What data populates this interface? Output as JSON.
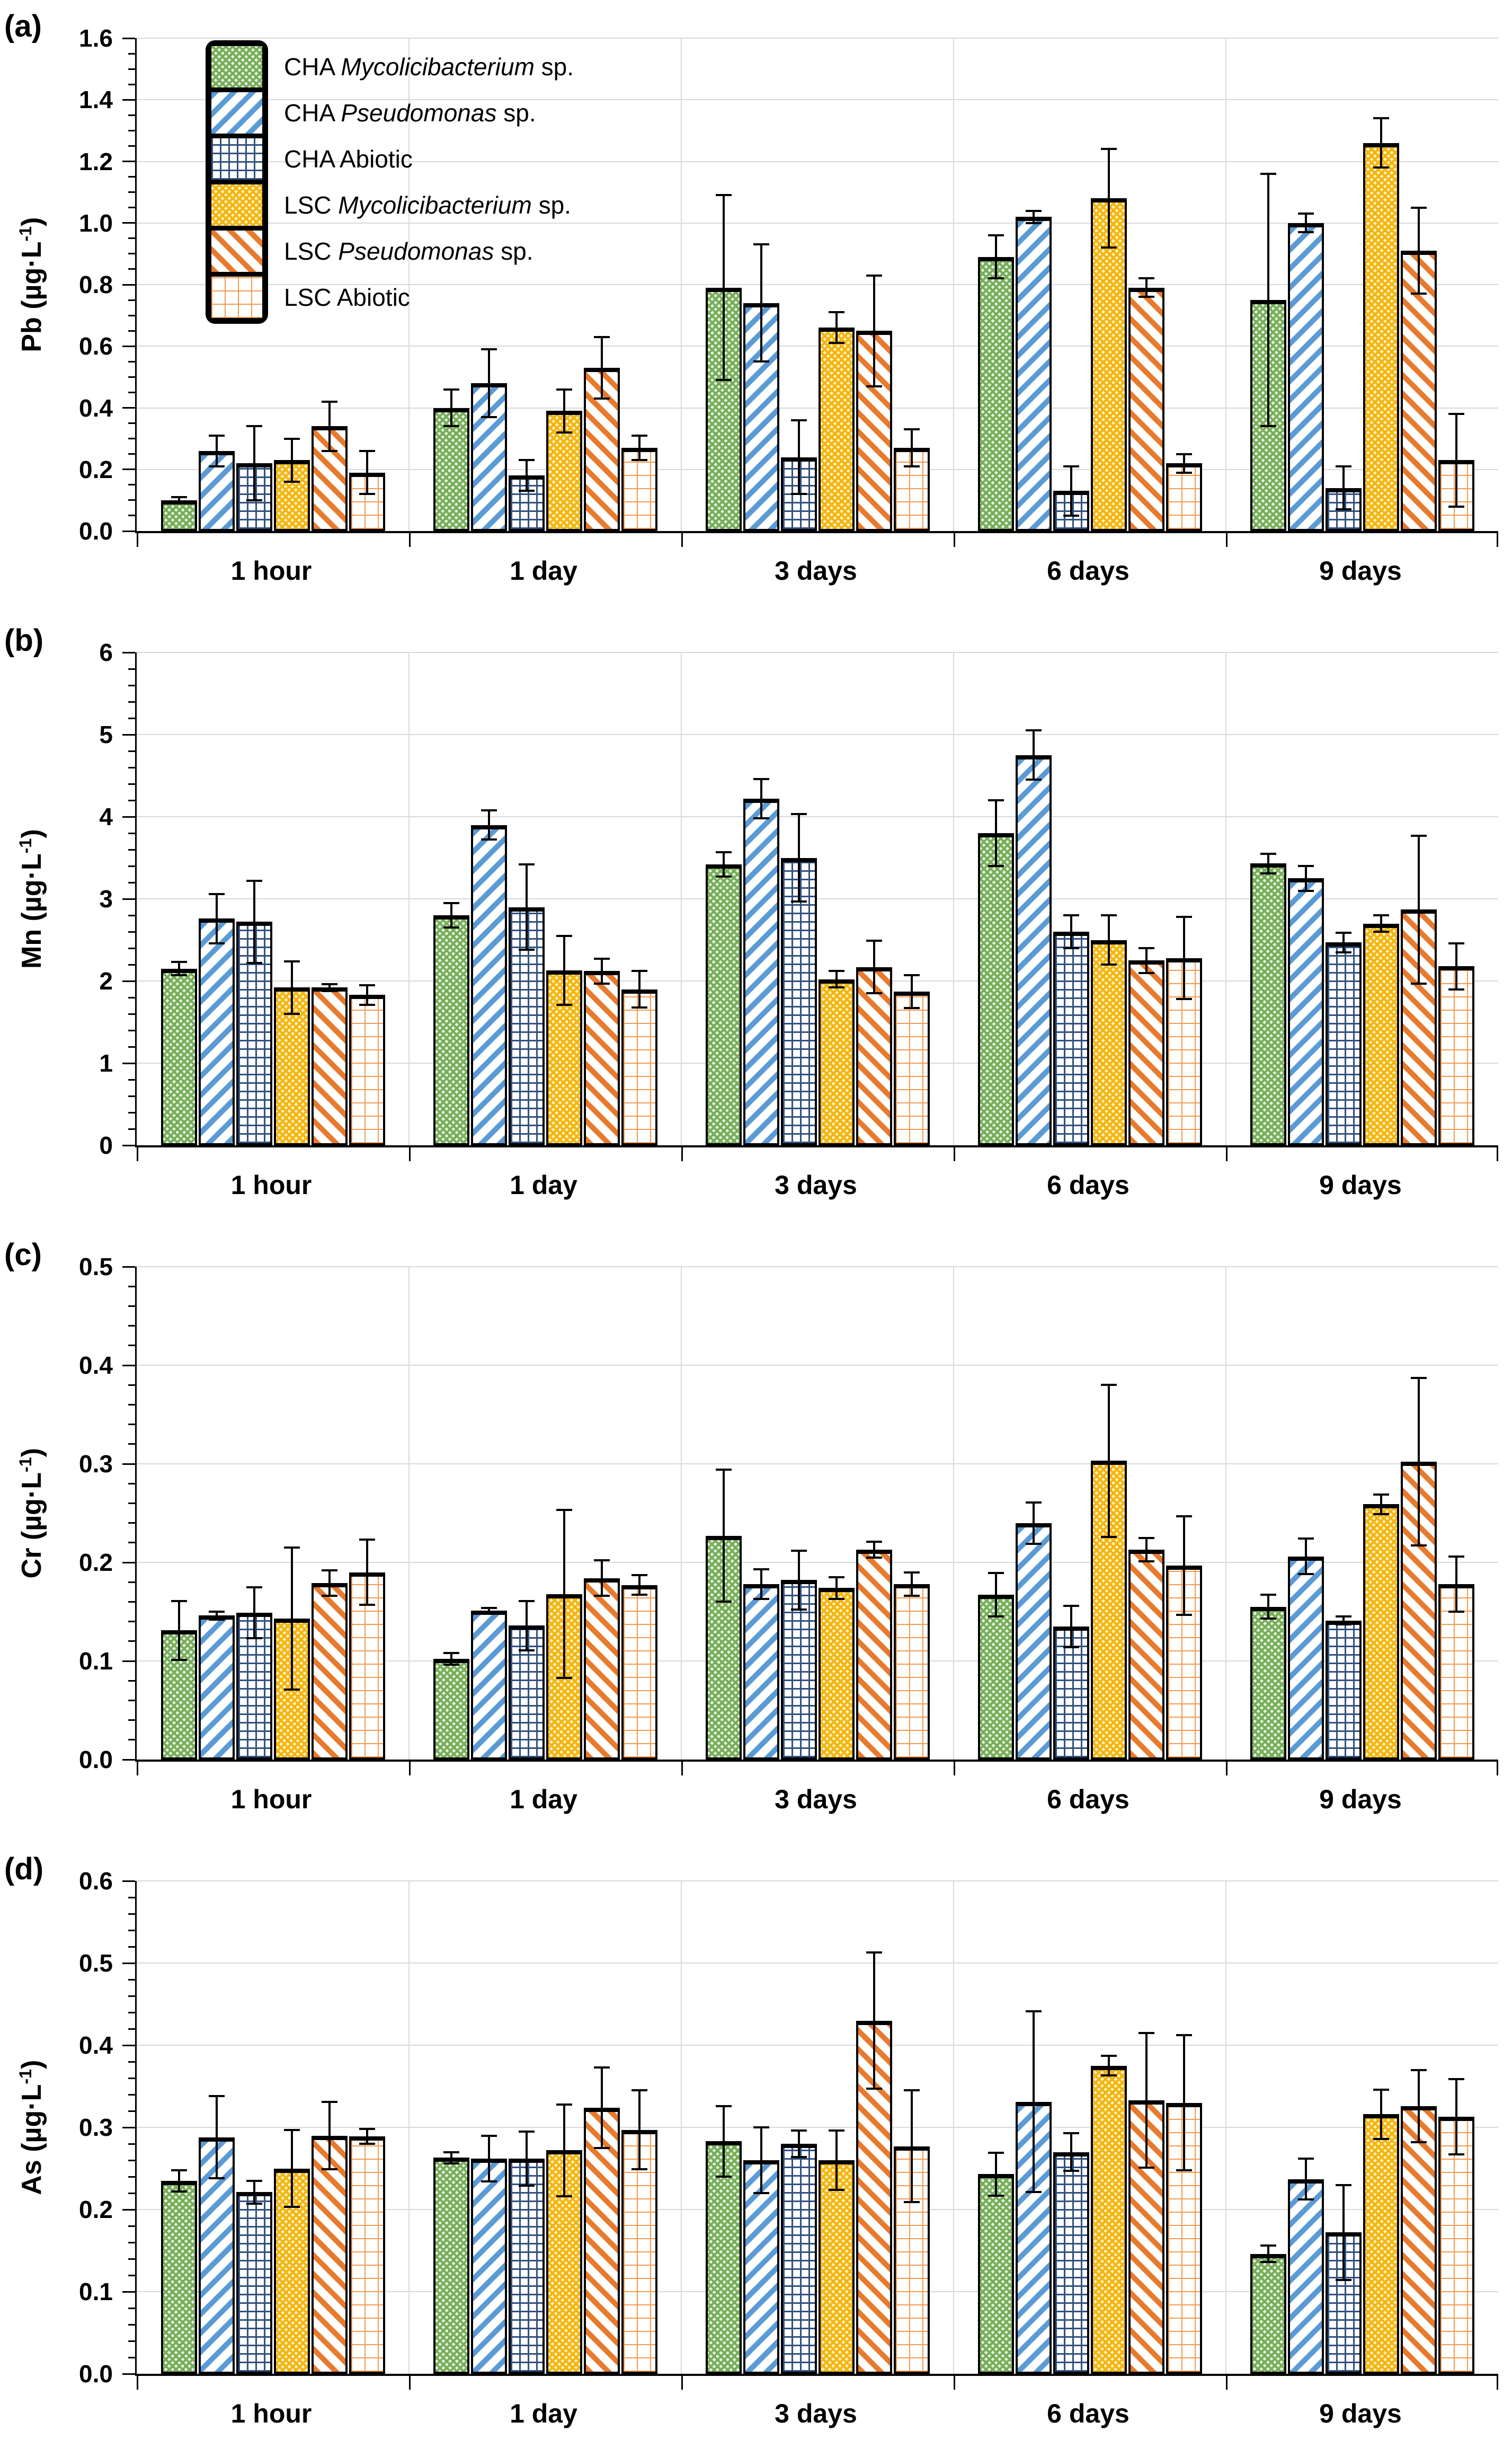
{
  "figure_title": "",
  "colors": {
    "grid": "#d9d9d9",
    "axis": "#000000",
    "error_bar": "#000000",
    "bar_border": "#000000"
  },
  "legend": {
    "position": "top-left-panel-a"
  },
  "chart_data": {
    "type": "bar",
    "categories": [
      "1 hour",
      "1 day",
      "3 days",
      "6 days",
      "9 days"
    ],
    "series_labels": [
      {
        "pre": "CHA ",
        "italic": "Mycolicibacterium",
        "post": " sp."
      },
      {
        "pre": "CHA ",
        "italic": "Pseudomonas",
        "post": " sp."
      },
      {
        "pre": "CHA Abiotic",
        "italic": "",
        "post": ""
      },
      {
        "pre": "LSC ",
        "italic": "Mycolicibacterium",
        "post": " sp."
      },
      {
        "pre": "LSC ",
        "italic": "Pseudomonas",
        "post": " sp."
      },
      {
        "pre": "LSC Abiotic",
        "italic": "",
        "post": ""
      }
    ],
    "series_styles": [
      {
        "style": "diamond",
        "line_color": "#74ad58",
        "bg": "#e7f1dc"
      },
      {
        "style": "stripes-up",
        "line_color": "#5b9bd5",
        "bg": "#ffffff"
      },
      {
        "style": "grid",
        "line_color": "#31507f",
        "bg": "#ffffff"
      },
      {
        "style": "diamond",
        "line_color": "#f4b40d",
        "bg": "#fdf0c2"
      },
      {
        "style": "stripes-down",
        "line_color": "#e87a2d",
        "bg": "#ffffff"
      },
      {
        "style": "dot-grid",
        "line_color": "#f29a52",
        "bg": "#ffffff"
      }
    ],
    "panels": [
      {
        "label": "(a)",
        "ylabel_pre": "Pb (µg·L",
        "ylabel_sup": "-1",
        "ylabel_post": ")",
        "ymax": 1.6,
        "step": 0.2,
        "minor": 0.05,
        "decimals": 1,
        "values": [
          [
            0.1,
            0.4,
            0.79,
            0.89,
            0.75
          ],
          [
            0.26,
            0.48,
            0.74,
            1.02,
            1.0
          ],
          [
            0.22,
            0.18,
            0.24,
            0.13,
            0.14
          ],
          [
            0.23,
            0.39,
            0.66,
            1.08,
            1.26
          ],
          [
            0.34,
            0.53,
            0.65,
            0.79,
            0.91
          ],
          [
            0.19,
            0.27,
            0.27,
            0.22,
            0.23
          ]
        ],
        "errors": [
          [
            0.01,
            0.06,
            0.3,
            0.07,
            0.41
          ],
          [
            0.05,
            0.11,
            0.19,
            0.02,
            0.03
          ],
          [
            0.12,
            0.05,
            0.12,
            0.08,
            0.07
          ],
          [
            0.07,
            0.07,
            0.05,
            0.16,
            0.08
          ],
          [
            0.08,
            0.1,
            0.18,
            0.03,
            0.14
          ],
          [
            0.07,
            0.04,
            0.06,
            0.03,
            0.15
          ]
        ]
      },
      {
        "label": "(b)",
        "ylabel_pre": "Mn (µg·L",
        "ylabel_sup": "-1",
        "ylabel_post": ")",
        "ymax": 6,
        "step": 1,
        "minor": 0.2,
        "decimals": 0,
        "values": [
          [
            2.15,
            2.8,
            3.42,
            3.8,
            3.43
          ],
          [
            2.76,
            3.9,
            4.22,
            4.75,
            3.25
          ],
          [
            2.72,
            2.9,
            3.5,
            2.6,
            2.47
          ],
          [
            1.92,
            2.13,
            2.02,
            2.5,
            2.7
          ],
          [
            1.92,
            2.12,
            2.17,
            2.25,
            2.87
          ],
          [
            1.83,
            1.9,
            1.87,
            2.28,
            2.18
          ]
        ],
        "errors": [
          [
            0.08,
            0.15,
            0.15,
            0.4,
            0.12
          ],
          [
            0.3,
            0.18,
            0.24,
            0.3,
            0.15
          ],
          [
            0.5,
            0.52,
            0.53,
            0.2,
            0.12
          ],
          [
            0.32,
            0.42,
            0.1,
            0.3,
            0.1
          ],
          [
            0.04,
            0.15,
            0.32,
            0.15,
            0.9
          ],
          [
            0.12,
            0.22,
            0.2,
            0.5,
            0.28
          ]
        ]
      },
      {
        "label": "(c)",
        "ylabel_pre": "Cr (µg·L",
        "ylabel_sup": "-1",
        "ylabel_post": ")",
        "ymax": 0.5,
        "step": 0.1,
        "minor": 0.02,
        "decimals": 1,
        "values": [
          [
            0.131,
            0.102,
            0.227,
            0.167,
            0.155
          ],
          [
            0.146,
            0.151,
            0.178,
            0.24,
            0.206
          ],
          [
            0.149,
            0.136,
            0.182,
            0.135,
            0.141
          ],
          [
            0.143,
            0.168,
            0.174,
            0.303,
            0.259
          ],
          [
            0.179,
            0.184,
            0.213,
            0.213,
            0.302
          ],
          [
            0.19,
            0.177,
            0.178,
            0.197,
            0.178
          ]
        ],
        "errors": [
          [
            0.03,
            0.006,
            0.067,
            0.022,
            0.012
          ],
          [
            0.004,
            0.003,
            0.015,
            0.021,
            0.018
          ],
          [
            0.026,
            0.025,
            0.03,
            0.021,
            0.004
          ],
          [
            0.072,
            0.085,
            0.011,
            0.077,
            0.01
          ],
          [
            0.013,
            0.018,
            0.008,
            0.012,
            0.085
          ],
          [
            0.033,
            0.01,
            0.012,
            0.05,
            0.028
          ]
        ]
      },
      {
        "label": "(d)",
        "ylabel_pre": "As (µg·L",
        "ylabel_sup": "-1",
        "ylabel_post": ")",
        "ymax": 0.6,
        "step": 0.1,
        "minor": 0.02,
        "decimals": 1,
        "values": [
          [
            0.235,
            0.263,
            0.283,
            0.243,
            0.146
          ],
          [
            0.288,
            0.262,
            0.26,
            0.331,
            0.237
          ],
          [
            0.221,
            0.262,
            0.28,
            0.27,
            0.172
          ],
          [
            0.25,
            0.272,
            0.26,
            0.375,
            0.316
          ],
          [
            0.29,
            0.324,
            0.43,
            0.333,
            0.326
          ],
          [
            0.289,
            0.297,
            0.277,
            0.33,
            0.313
          ]
        ],
        "errors": [
          [
            0.013,
            0.007,
            0.043,
            0.026,
            0.01
          ],
          [
            0.05,
            0.028,
            0.04,
            0.11,
            0.025
          ],
          [
            0.014,
            0.033,
            0.016,
            0.023,
            0.058
          ],
          [
            0.047,
            0.056,
            0.036,
            0.012,
            0.03
          ],
          [
            0.041,
            0.049,
            0.083,
            0.082,
            0.044
          ],
          [
            0.009,
            0.048,
            0.068,
            0.082,
            0.046
          ]
        ]
      }
    ]
  }
}
